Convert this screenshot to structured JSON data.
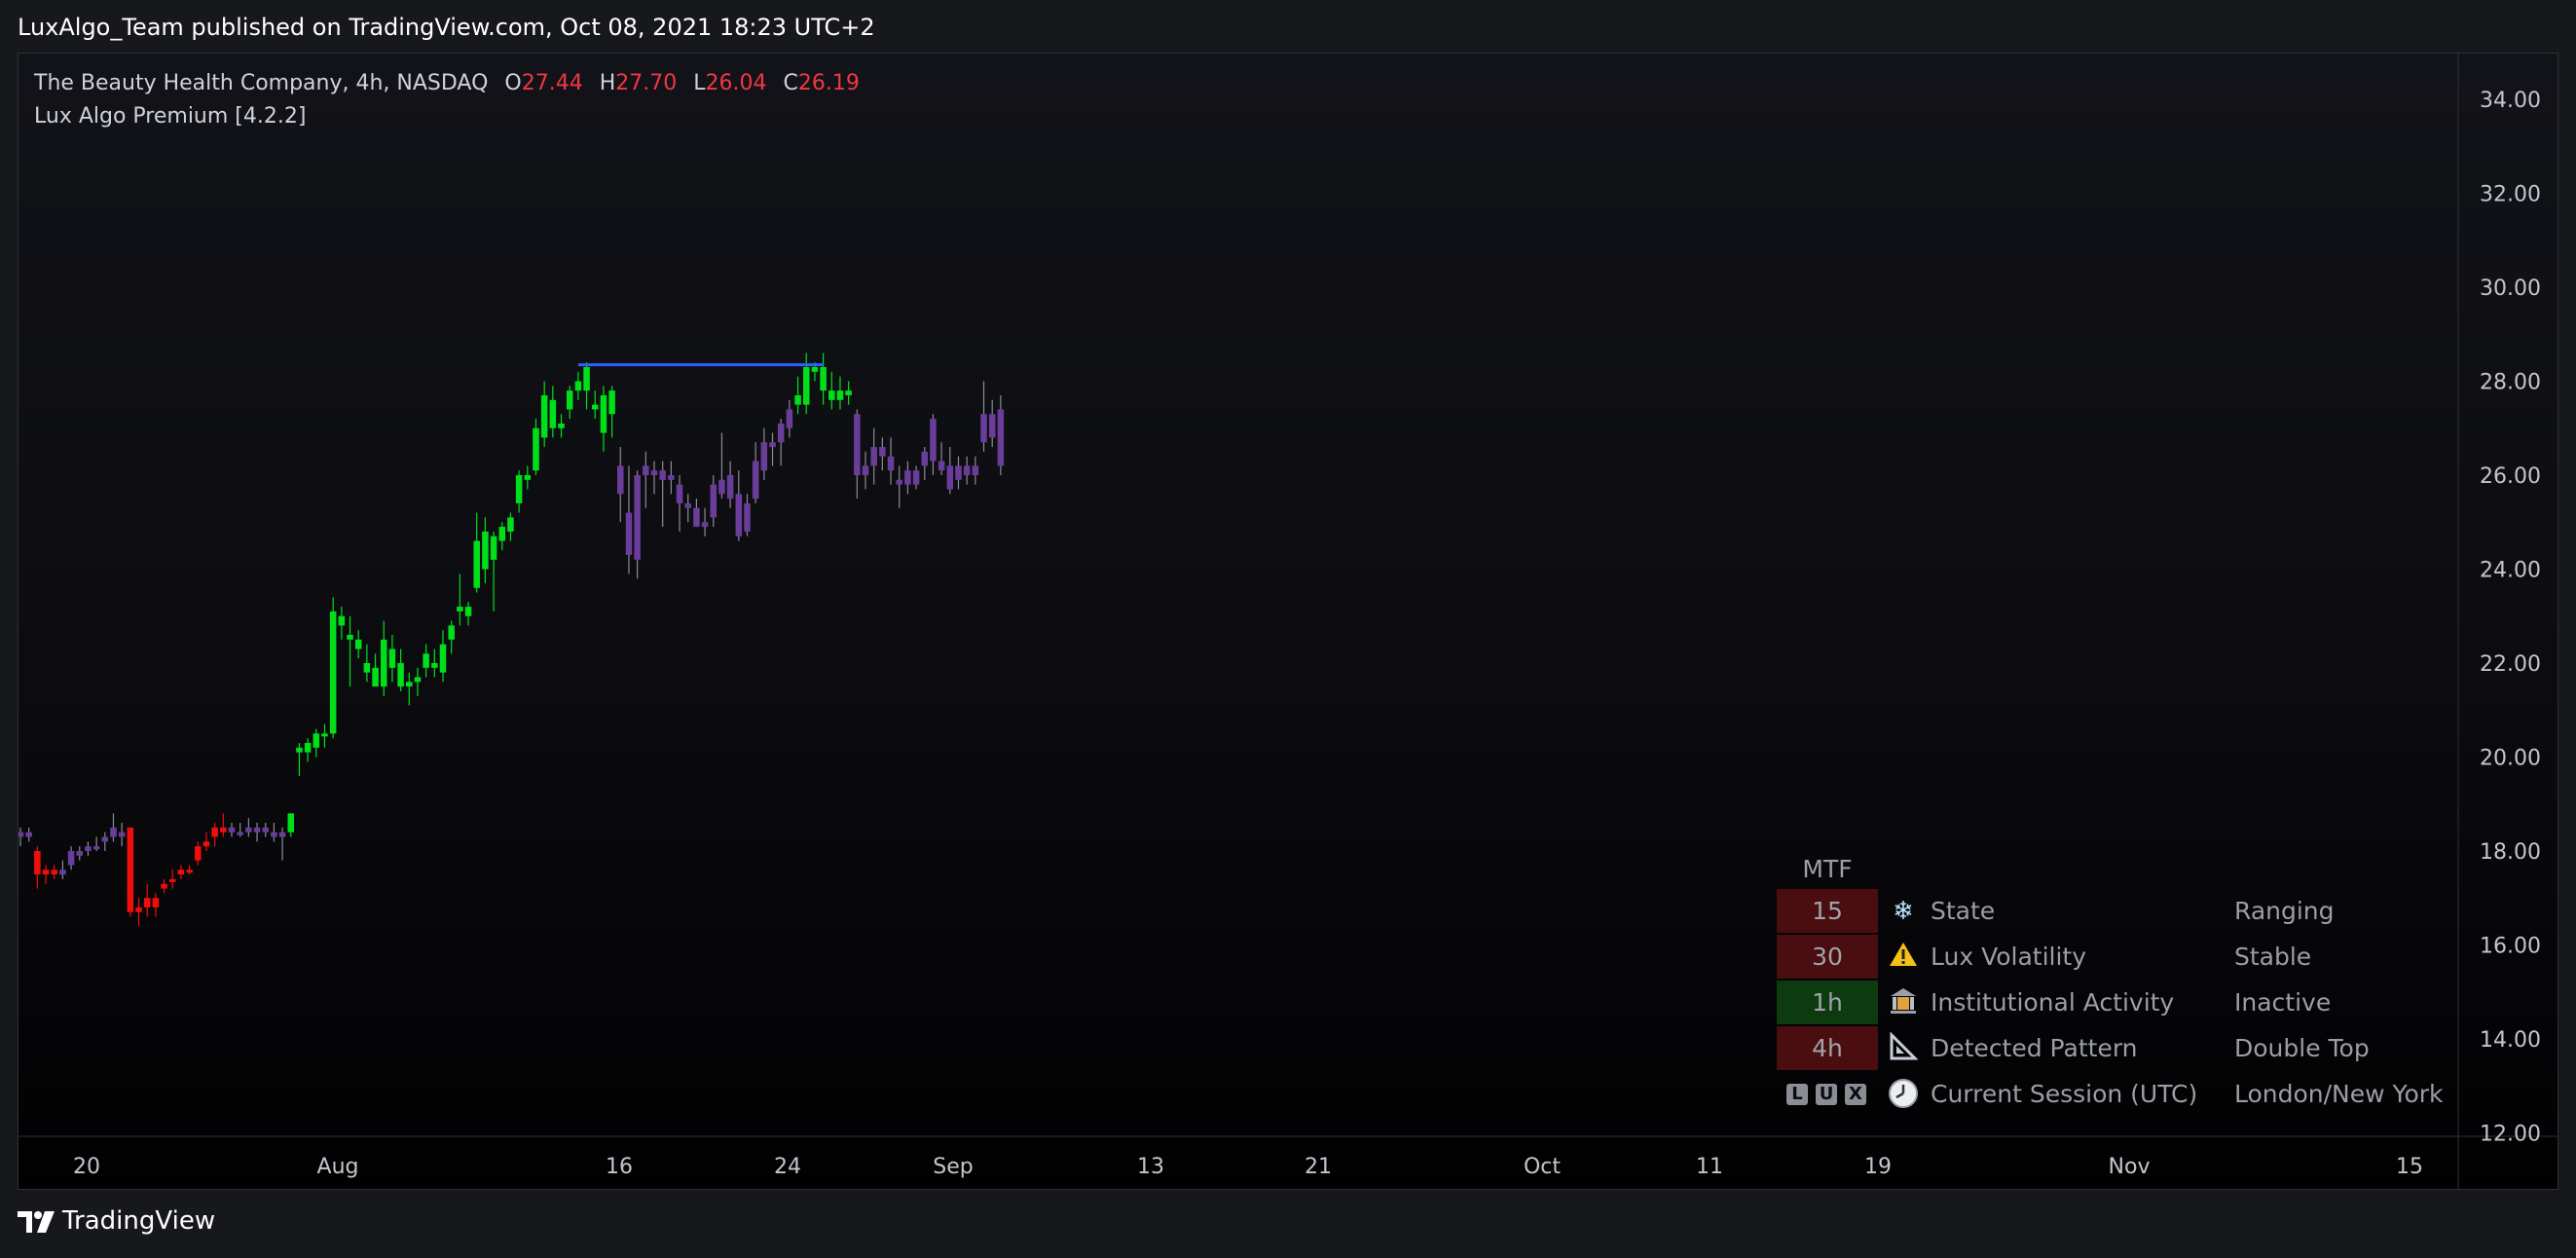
{
  "header": {
    "publisher": "LuxAlgo_Team published on TradingView.com, Oct 08, 2021 18:23 UTC+2"
  },
  "legend": {
    "symbol": "The Beauty Health Company, 4h, NASDAQ",
    "o_label": "O",
    "o_value": "27.44",
    "h_label": "H",
    "h_value": "27.70",
    "l_label": "L",
    "l_value": "26.04",
    "c_label": "C",
    "c_value": "26.19",
    "indicator": "Lux Algo Premium [4.2.2]"
  },
  "mtf_table": {
    "title": "MTF",
    "rows": [
      {
        "tf": "15",
        "tf_color": "#4a0d10",
        "icon": "snowflake-icon",
        "label": "State",
        "value": "Ranging"
      },
      {
        "tf": "30",
        "tf_color": "#4a0d10",
        "icon": "warning-icon",
        "label": "Lux Volatility",
        "value": "Stable"
      },
      {
        "tf": "1h",
        "tf_color": "#0e3a10",
        "icon": "bank-icon",
        "label": "Institutional Activity",
        "value": "Inactive"
      },
      {
        "tf": "4h",
        "tf_color": "#4a0d10",
        "icon": "triangle-ruler-icon",
        "label": "Detected Pattern",
        "value": "Double Top"
      },
      {
        "tf": "LUX",
        "tf_color": "none",
        "icon": "clock-icon",
        "label": "Current Session (UTC)",
        "value": "London/New York"
      }
    ]
  },
  "footer": {
    "brand": "TradingView"
  },
  "colors": {
    "bull": "#00e01a",
    "bear": "#f20d0d",
    "neutral": "#6a3d9a",
    "double_top_line": "#2962ff"
  },
  "chart_data": {
    "type": "candlestick",
    "title": "The Beauty Health Company, 4h, NASDAQ",
    "ylim": [
      12,
      35
    ],
    "y_ticks": [
      "34.00",
      "32.00",
      "30.00",
      "28.00",
      "26.00",
      "24.00",
      "22.00",
      "20.00",
      "18.00",
      "16.00",
      "14.00",
      "12.00"
    ],
    "x_tick_labels": [
      "20",
      "Aug",
      "16",
      "24",
      "Sep",
      "13",
      "21",
      "Oct",
      "11",
      "19",
      "Nov",
      "15"
    ],
    "candles": [
      {
        "o": 18.3,
        "h": 18.5,
        "l": 18.1,
        "c": 18.4,
        "t": "n"
      },
      {
        "o": 18.4,
        "h": 18.5,
        "l": 18.2,
        "c": 18.3,
        "t": "n"
      },
      {
        "o": 18.0,
        "h": 18.1,
        "l": 17.2,
        "c": 17.5,
        "t": "r"
      },
      {
        "o": 17.5,
        "h": 17.7,
        "l": 17.3,
        "c": 17.6,
        "t": "r"
      },
      {
        "o": 17.6,
        "h": 17.7,
        "l": 17.4,
        "c": 17.5,
        "t": "r"
      },
      {
        "o": 17.5,
        "h": 17.8,
        "l": 17.4,
        "c": 17.6,
        "t": "n"
      },
      {
        "o": 17.7,
        "h": 18.1,
        "l": 17.6,
        "c": 18.0,
        "t": "n"
      },
      {
        "o": 17.9,
        "h": 18.1,
        "l": 17.8,
        "c": 18.0,
        "t": "n"
      },
      {
        "o": 18.0,
        "h": 18.2,
        "l": 17.9,
        "c": 18.1,
        "t": "n"
      },
      {
        "o": 18.1,
        "h": 18.3,
        "l": 18.0,
        "c": 18.1,
        "t": "n"
      },
      {
        "o": 18.2,
        "h": 18.4,
        "l": 18.0,
        "c": 18.3,
        "t": "n"
      },
      {
        "o": 18.3,
        "h": 18.8,
        "l": 18.2,
        "c": 18.5,
        "t": "n"
      },
      {
        "o": 18.4,
        "h": 18.6,
        "l": 18.1,
        "c": 18.3,
        "t": "n"
      },
      {
        "o": 18.5,
        "h": 18.5,
        "l": 16.6,
        "c": 16.7,
        "t": "r"
      },
      {
        "o": 16.8,
        "h": 17.0,
        "l": 16.4,
        "c": 16.7,
        "t": "r"
      },
      {
        "o": 16.8,
        "h": 17.3,
        "l": 16.6,
        "c": 17.0,
        "t": "r"
      },
      {
        "o": 17.0,
        "h": 17.1,
        "l": 16.6,
        "c": 16.8,
        "t": "r"
      },
      {
        "o": 17.2,
        "h": 17.4,
        "l": 17.1,
        "c": 17.3,
        "t": "r"
      },
      {
        "o": 17.4,
        "h": 17.6,
        "l": 17.2,
        "c": 17.4,
        "t": "r"
      },
      {
        "o": 17.5,
        "h": 17.7,
        "l": 17.4,
        "c": 17.6,
        "t": "r"
      },
      {
        "o": 17.6,
        "h": 17.7,
        "l": 17.5,
        "c": 17.6,
        "t": "r"
      },
      {
        "o": 17.8,
        "h": 18.2,
        "l": 17.7,
        "c": 18.1,
        "t": "r"
      },
      {
        "o": 18.1,
        "h": 18.4,
        "l": 18.0,
        "c": 18.2,
        "t": "r"
      },
      {
        "o": 18.3,
        "h": 18.6,
        "l": 18.1,
        "c": 18.5,
        "t": "r"
      },
      {
        "o": 18.5,
        "h": 18.8,
        "l": 18.3,
        "c": 18.4,
        "t": "r"
      },
      {
        "o": 18.4,
        "h": 18.6,
        "l": 18.3,
        "c": 18.5,
        "t": "n"
      },
      {
        "o": 18.4,
        "h": 18.6,
        "l": 18.3,
        "c": 18.4,
        "t": "n"
      },
      {
        "o": 18.5,
        "h": 18.7,
        "l": 18.3,
        "c": 18.4,
        "t": "n"
      },
      {
        "o": 18.4,
        "h": 18.6,
        "l": 18.2,
        "c": 18.5,
        "t": "n"
      },
      {
        "o": 18.5,
        "h": 18.6,
        "l": 18.3,
        "c": 18.4,
        "t": "n"
      },
      {
        "o": 18.4,
        "h": 18.6,
        "l": 18.2,
        "c": 18.3,
        "t": "n"
      },
      {
        "o": 18.3,
        "h": 18.5,
        "l": 17.8,
        "c": 18.4,
        "t": "n"
      },
      {
        "o": 18.4,
        "h": 18.8,
        "l": 18.3,
        "c": 18.8,
        "t": "g"
      },
      {
        "o": 20.1,
        "h": 20.3,
        "l": 19.6,
        "c": 20.2,
        "t": "g"
      },
      {
        "o": 20.1,
        "h": 20.4,
        "l": 19.9,
        "c": 20.3,
        "t": "g"
      },
      {
        "o": 20.2,
        "h": 20.6,
        "l": 20.0,
        "c": 20.5,
        "t": "g"
      },
      {
        "o": 20.5,
        "h": 20.7,
        "l": 20.2,
        "c": 20.5,
        "t": "g"
      },
      {
        "o": 20.5,
        "h": 23.4,
        "l": 20.4,
        "c": 23.1,
        "t": "g"
      },
      {
        "o": 23.0,
        "h": 23.2,
        "l": 22.5,
        "c": 22.8,
        "t": "g"
      },
      {
        "o": 22.6,
        "h": 23.0,
        "l": 21.5,
        "c": 22.5,
        "t": "g"
      },
      {
        "o": 22.5,
        "h": 22.7,
        "l": 22.1,
        "c": 22.3,
        "t": "g"
      },
      {
        "o": 22.0,
        "h": 22.4,
        "l": 21.6,
        "c": 21.8,
        "t": "g"
      },
      {
        "o": 21.9,
        "h": 22.2,
        "l": 21.6,
        "c": 21.5,
        "t": "g"
      },
      {
        "o": 21.5,
        "h": 22.9,
        "l": 21.3,
        "c": 22.5,
        "t": "g"
      },
      {
        "o": 22.3,
        "h": 22.6,
        "l": 21.6,
        "c": 21.9,
        "t": "g"
      },
      {
        "o": 22.0,
        "h": 22.3,
        "l": 21.4,
        "c": 21.5,
        "t": "g"
      },
      {
        "o": 21.5,
        "h": 21.8,
        "l": 21.1,
        "c": 21.6,
        "t": "g"
      },
      {
        "o": 21.6,
        "h": 21.9,
        "l": 21.3,
        "c": 21.7,
        "t": "g"
      },
      {
        "o": 21.9,
        "h": 22.4,
        "l": 21.7,
        "c": 22.2,
        "t": "g"
      },
      {
        "o": 22.0,
        "h": 22.3,
        "l": 21.7,
        "c": 21.9,
        "t": "g"
      },
      {
        "o": 21.8,
        "h": 22.7,
        "l": 21.6,
        "c": 22.4,
        "t": "g"
      },
      {
        "o": 22.5,
        "h": 22.9,
        "l": 22.2,
        "c": 22.8,
        "t": "g"
      },
      {
        "o": 23.1,
        "h": 23.9,
        "l": 22.8,
        "c": 23.2,
        "t": "g"
      },
      {
        "o": 23.0,
        "h": 23.3,
        "l": 22.8,
        "c": 23.2,
        "t": "g"
      },
      {
        "o": 23.6,
        "h": 25.2,
        "l": 23.5,
        "c": 24.6,
        "t": "g"
      },
      {
        "o": 24.0,
        "h": 25.1,
        "l": 23.7,
        "c": 24.8,
        "t": "g"
      },
      {
        "o": 24.2,
        "h": 24.8,
        "l": 23.1,
        "c": 24.7,
        "t": "g"
      },
      {
        "o": 24.6,
        "h": 25.0,
        "l": 24.4,
        "c": 24.9,
        "t": "g"
      },
      {
        "o": 24.8,
        "h": 25.2,
        "l": 24.6,
        "c": 25.1,
        "t": "g"
      },
      {
        "o": 25.4,
        "h": 26.1,
        "l": 25.2,
        "c": 26.0,
        "t": "g"
      },
      {
        "o": 25.9,
        "h": 26.2,
        "l": 25.7,
        "c": 26.0,
        "t": "g"
      },
      {
        "o": 26.1,
        "h": 27.2,
        "l": 26.0,
        "c": 27.0,
        "t": "g"
      },
      {
        "o": 26.8,
        "h": 28.0,
        "l": 26.6,
        "c": 27.7,
        "t": "g"
      },
      {
        "o": 27.0,
        "h": 27.9,
        "l": 26.8,
        "c": 27.6,
        "t": "g"
      },
      {
        "o": 27.0,
        "h": 27.3,
        "l": 26.8,
        "c": 27.1,
        "t": "g"
      },
      {
        "o": 27.4,
        "h": 27.9,
        "l": 27.2,
        "c": 27.8,
        "t": "g"
      },
      {
        "o": 27.8,
        "h": 28.2,
        "l": 27.6,
        "c": 28.0,
        "t": "g"
      },
      {
        "o": 27.8,
        "h": 28.4,
        "l": 27.4,
        "c": 28.3,
        "t": "g"
      },
      {
        "o": 27.4,
        "h": 27.8,
        "l": 27.2,
        "c": 27.5,
        "t": "g"
      },
      {
        "o": 26.9,
        "h": 27.9,
        "l": 26.5,
        "c": 27.7,
        "t": "g"
      },
      {
        "o": 27.3,
        "h": 27.9,
        "l": 26.8,
        "c": 27.8,
        "t": "g"
      },
      {
        "o": 26.2,
        "h": 26.6,
        "l": 25.0,
        "c": 25.6,
        "t": "n"
      },
      {
        "o": 25.2,
        "h": 26.2,
        "l": 23.9,
        "c": 24.3,
        "t": "n"
      },
      {
        "o": 24.2,
        "h": 26.1,
        "l": 23.8,
        "c": 26.0,
        "t": "n"
      },
      {
        "o": 26.0,
        "h": 26.5,
        "l": 25.3,
        "c": 26.2,
        "t": "n"
      },
      {
        "o": 26.1,
        "h": 26.3,
        "l": 25.6,
        "c": 26.0,
        "t": "n"
      },
      {
        "o": 25.9,
        "h": 26.3,
        "l": 24.9,
        "c": 26.1,
        "t": "n"
      },
      {
        "o": 26.0,
        "h": 26.3,
        "l": 25.6,
        "c": 25.9,
        "t": "n"
      },
      {
        "o": 25.8,
        "h": 26.0,
        "l": 24.8,
        "c": 25.4,
        "t": "n"
      },
      {
        "o": 25.4,
        "h": 25.6,
        "l": 25.0,
        "c": 25.3,
        "t": "n"
      },
      {
        "o": 25.3,
        "h": 25.5,
        "l": 24.9,
        "c": 24.9,
        "t": "n"
      },
      {
        "o": 25.0,
        "h": 25.3,
        "l": 24.7,
        "c": 24.9,
        "t": "n"
      },
      {
        "o": 25.1,
        "h": 26.0,
        "l": 24.9,
        "c": 25.8,
        "t": "n"
      },
      {
        "o": 25.9,
        "h": 26.9,
        "l": 25.5,
        "c": 25.6,
        "t": "n"
      },
      {
        "o": 25.5,
        "h": 26.3,
        "l": 25.3,
        "c": 26.0,
        "t": "n"
      },
      {
        "o": 25.6,
        "h": 26.1,
        "l": 24.6,
        "c": 24.7,
        "t": "n"
      },
      {
        "o": 24.8,
        "h": 25.6,
        "l": 24.7,
        "c": 25.4,
        "t": "n"
      },
      {
        "o": 25.5,
        "h": 26.7,
        "l": 25.4,
        "c": 26.3,
        "t": "n"
      },
      {
        "o": 26.1,
        "h": 27.0,
        "l": 25.9,
        "c": 26.7,
        "t": "n"
      },
      {
        "o": 26.6,
        "h": 26.9,
        "l": 26.2,
        "c": 26.7,
        "t": "n"
      },
      {
        "o": 26.7,
        "h": 27.2,
        "l": 26.2,
        "c": 27.1,
        "t": "n"
      },
      {
        "o": 27.0,
        "h": 27.6,
        "l": 26.8,
        "c": 27.4,
        "t": "n"
      },
      {
        "o": 27.5,
        "h": 28.1,
        "l": 27.3,
        "c": 27.7,
        "t": "g"
      },
      {
        "o": 27.5,
        "h": 28.6,
        "l": 27.3,
        "c": 28.3,
        "t": "g"
      },
      {
        "o": 28.2,
        "h": 28.4,
        "l": 28.0,
        "c": 28.3,
        "t": "g"
      },
      {
        "o": 28.3,
        "h": 28.6,
        "l": 27.5,
        "c": 27.8,
        "t": "g"
      },
      {
        "o": 27.8,
        "h": 28.2,
        "l": 27.4,
        "c": 27.6,
        "t": "g"
      },
      {
        "o": 27.6,
        "h": 28.1,
        "l": 27.4,
        "c": 27.8,
        "t": "g"
      },
      {
        "o": 27.7,
        "h": 28.0,
        "l": 27.5,
        "c": 27.8,
        "t": "g"
      },
      {
        "o": 27.3,
        "h": 27.4,
        "l": 25.5,
        "c": 26.0,
        "t": "n"
      },
      {
        "o": 26.0,
        "h": 26.5,
        "l": 25.7,
        "c": 26.2,
        "t": "n"
      },
      {
        "o": 26.2,
        "h": 27.0,
        "l": 25.8,
        "c": 26.6,
        "t": "n"
      },
      {
        "o": 26.6,
        "h": 26.8,
        "l": 26.1,
        "c": 26.4,
        "t": "n"
      },
      {
        "o": 26.4,
        "h": 26.8,
        "l": 25.8,
        "c": 26.1,
        "t": "n"
      },
      {
        "o": 25.9,
        "h": 26.2,
        "l": 25.3,
        "c": 25.8,
        "t": "n"
      },
      {
        "o": 25.8,
        "h": 26.3,
        "l": 25.6,
        "c": 26.1,
        "t": "n"
      },
      {
        "o": 25.8,
        "h": 26.2,
        "l": 25.7,
        "c": 26.1,
        "t": "n"
      },
      {
        "o": 26.2,
        "h": 26.6,
        "l": 25.9,
        "c": 26.5,
        "t": "n"
      },
      {
        "o": 26.3,
        "h": 27.3,
        "l": 26.0,
        "c": 27.2,
        "t": "n"
      },
      {
        "o": 26.3,
        "h": 26.7,
        "l": 26.0,
        "c": 26.1,
        "t": "n"
      },
      {
        "o": 26.2,
        "h": 26.6,
        "l": 25.6,
        "c": 25.7,
        "t": "n"
      },
      {
        "o": 25.9,
        "h": 26.4,
        "l": 25.7,
        "c": 26.2,
        "t": "n"
      },
      {
        "o": 26.0,
        "h": 26.4,
        "l": 25.8,
        "c": 26.2,
        "t": "n"
      },
      {
        "o": 26.2,
        "h": 26.4,
        "l": 25.8,
        "c": 26.0,
        "t": "n"
      },
      {
        "o": 26.7,
        "h": 28.0,
        "l": 26.5,
        "c": 27.3,
        "t": "n"
      },
      {
        "o": 27.3,
        "h": 27.6,
        "l": 26.6,
        "c": 26.8,
        "t": "n"
      },
      {
        "o": 27.4,
        "h": 27.7,
        "l": 26.0,
        "c": 26.2,
        "t": "n"
      }
    ],
    "double_top": {
      "from_index": 66,
      "to_index": 95,
      "price": 28.35,
      "color": "#2962ff"
    }
  }
}
